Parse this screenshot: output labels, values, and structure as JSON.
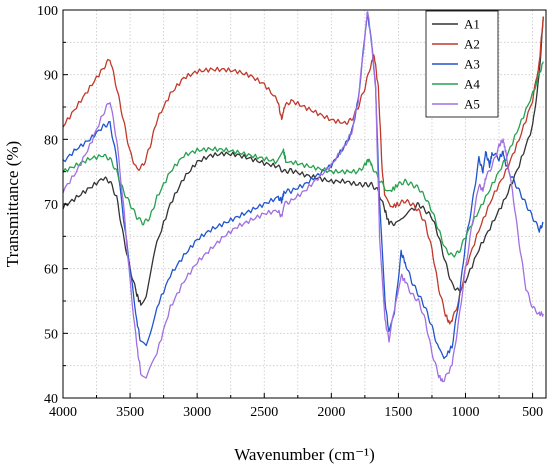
{
  "chart_data": {
    "type": "line",
    "title": "",
    "xlabel": "Wavenumber (cm⁻¹)",
    "ylabel": "Transmittance (%)",
    "xlim": [
      4000,
      400
    ],
    "ylim": [
      40,
      100
    ],
    "x_reversed": true,
    "grid": true,
    "legend": "top-right",
    "xticks": [
      4000,
      3500,
      3000,
      2500,
      2000,
      1500,
      1000,
      500
    ],
    "yticks": [
      40,
      50,
      60,
      70,
      80,
      90,
      100
    ],
    "series": [
      {
        "name": "A1",
        "color": "#333333",
        "points": [
          [
            4000,
            69.5
          ],
          [
            3900,
            71
          ],
          [
            3800,
            72.5
          ],
          [
            3700,
            74
          ],
          [
            3650,
            73.5
          ],
          [
            3600,
            71
          ],
          [
            3550,
            65
          ],
          [
            3500,
            60
          ],
          [
            3450,
            56
          ],
          [
            3420,
            54.5
          ],
          [
            3380,
            56
          ],
          [
            3300,
            64
          ],
          [
            3200,
            70
          ],
          [
            3100,
            74
          ],
          [
            3000,
            76.5
          ],
          [
            2900,
            77.5
          ],
          [
            2800,
            77.8
          ],
          [
            2700,
            77.6
          ],
          [
            2600,
            77
          ],
          [
            2500,
            76.3
          ],
          [
            2400,
            75.8
          ],
          [
            2350,
            75
          ],
          [
            2300,
            75.2
          ],
          [
            2200,
            74.5
          ],
          [
            2100,
            74
          ],
          [
            2000,
            73.5
          ],
          [
            1900,
            73.5
          ],
          [
            1800,
            73
          ],
          [
            1750,
            73
          ],
          [
            1700,
            73
          ],
          [
            1650,
            72
          ],
          [
            1600,
            69
          ],
          [
            1570,
            67
          ],
          [
            1520,
            67
          ],
          [
            1480,
            68
          ],
          [
            1400,
            69
          ],
          [
            1350,
            70
          ],
          [
            1300,
            69
          ],
          [
            1250,
            68
          ],
          [
            1200,
            65
          ],
          [
            1150,
            61
          ],
          [
            1100,
            57.5
          ],
          [
            1050,
            56.5
          ],
          [
            1000,
            58
          ],
          [
            900,
            63
          ],
          [
            800,
            67
          ],
          [
            700,
            71
          ],
          [
            600,
            76
          ],
          [
            500,
            82
          ],
          [
            450,
            90
          ],
          [
            420,
            99
          ]
        ]
      },
      {
        "name": "A2",
        "color": "#c0392b",
        "points": [
          [
            4000,
            82
          ],
          [
            3900,
            85
          ],
          [
            3800,
            88
          ],
          [
            3700,
            91
          ],
          [
            3650,
            92.5
          ],
          [
            3600,
            88
          ],
          [
            3550,
            83
          ],
          [
            3500,
            78
          ],
          [
            3450,
            75.3
          ],
          [
            3400,
            76
          ],
          [
            3350,
            79
          ],
          [
            3300,
            83
          ],
          [
            3200,
            87
          ],
          [
            3100,
            89.5
          ],
          [
            3000,
            90.5
          ],
          [
            2900,
            90.8
          ],
          [
            2800,
            90.8
          ],
          [
            2700,
            90.5
          ],
          [
            2600,
            89.8
          ],
          [
            2500,
            88.5
          ],
          [
            2400,
            86
          ],
          [
            2370,
            83
          ],
          [
            2350,
            85
          ],
          [
            2300,
            86
          ],
          [
            2200,
            85
          ],
          [
            2100,
            84
          ],
          [
            2000,
            83
          ],
          [
            1900,
            82.5
          ],
          [
            1850,
            83
          ],
          [
            1800,
            85
          ],
          [
            1750,
            88
          ],
          [
            1700,
            92
          ],
          [
            1680,
            93
          ],
          [
            1650,
            88
          ],
          [
            1620,
            75
          ],
          [
            1600,
            71
          ],
          [
            1560,
            69.5
          ],
          [
            1500,
            70
          ],
          [
            1450,
            70.5
          ],
          [
            1400,
            70
          ],
          [
            1350,
            69
          ],
          [
            1300,
            67
          ],
          [
            1250,
            63
          ],
          [
            1200,
            57
          ],
          [
            1150,
            53
          ],
          [
            1120,
            51.5
          ],
          [
            1100,
            52
          ],
          [
            1050,
            55
          ],
          [
            1000,
            60
          ],
          [
            900,
            66
          ],
          [
            800,
            71
          ],
          [
            700,
            75
          ],
          [
            600,
            80
          ],
          [
            500,
            86
          ],
          [
            450,
            92
          ],
          [
            420,
            99
          ]
        ]
      },
      {
        "name": "A3",
        "color": "#2255cc",
        "points": [
          [
            4000,
            76.5
          ],
          [
            3900,
            78.5
          ],
          [
            3800,
            80
          ],
          [
            3700,
            82
          ],
          [
            3650,
            82.5
          ],
          [
            3600,
            77
          ],
          [
            3550,
            68
          ],
          [
            3500,
            60
          ],
          [
            3450,
            52
          ],
          [
            3420,
            48.5
          ],
          [
            3380,
            48
          ],
          [
            3300,
            54
          ],
          [
            3200,
            59
          ],
          [
            3100,
            62
          ],
          [
            3000,
            64.5
          ],
          [
            2900,
            66
          ],
          [
            2800,
            67
          ],
          [
            2700,
            68
          ],
          [
            2600,
            69
          ],
          [
            2500,
            70
          ],
          [
            2400,
            71
          ],
          [
            2370,
            70.5
          ],
          [
            2350,
            72
          ],
          [
            2300,
            72
          ],
          [
            2200,
            73
          ],
          [
            2100,
            74.5
          ],
          [
            2000,
            76
          ],
          [
            1900,
            79
          ],
          [
            1850,
            81
          ],
          [
            1800,
            86
          ],
          [
            1750,
            96
          ],
          [
            1730,
            99.5
          ],
          [
            1700,
            95
          ],
          [
            1670,
            88
          ],
          [
            1640,
            70
          ],
          [
            1600,
            55
          ],
          [
            1570,
            50
          ],
          [
            1530,
            53
          ],
          [
            1480,
            62.5
          ],
          [
            1450,
            61
          ],
          [
            1400,
            58
          ],
          [
            1350,
            56
          ],
          [
            1300,
            54
          ],
          [
            1250,
            51
          ],
          [
            1200,
            47.5
          ],
          [
            1160,
            46
          ],
          [
            1100,
            48
          ],
          [
            1050,
            55
          ],
          [
            1000,
            64
          ],
          [
            950,
            70
          ],
          [
            900,
            77
          ],
          [
            870,
            75
          ],
          [
            850,
            78
          ],
          [
            820,
            76
          ],
          [
            800,
            78
          ],
          [
            750,
            77
          ],
          [
            720,
            78
          ],
          [
            700,
            76
          ],
          [
            650,
            74
          ],
          [
            600,
            72
          ],
          [
            550,
            70
          ],
          [
            500,
            68
          ],
          [
            450,
            66
          ],
          [
            420,
            67
          ]
        ]
      },
      {
        "name": "A4",
        "color": "#27a050",
        "points": [
          [
            4000,
            75
          ],
          [
            3900,
            76
          ],
          [
            3800,
            77
          ],
          [
            3700,
            77.5
          ],
          [
            3650,
            77
          ],
          [
            3600,
            75
          ],
          [
            3550,
            72
          ],
          [
            3500,
            70
          ],
          [
            3450,
            68
          ],
          [
            3400,
            67
          ],
          [
            3350,
            68
          ],
          [
            3300,
            71
          ],
          [
            3200,
            75
          ],
          [
            3100,
            77.5
          ],
          [
            3000,
            78.3
          ],
          [
            2900,
            78.5
          ],
          [
            2800,
            78.4
          ],
          [
            2700,
            78
          ],
          [
            2600,
            77.5
          ],
          [
            2500,
            77
          ],
          [
            2400,
            76.5
          ],
          [
            2360,
            78.5
          ],
          [
            2340,
            76.8
          ],
          [
            2300,
            76.5
          ],
          [
            2200,
            76
          ],
          [
            2100,
            75.5
          ],
          [
            2000,
            75
          ],
          [
            1900,
            75
          ],
          [
            1800,
            75
          ],
          [
            1750,
            76
          ],
          [
            1720,
            77
          ],
          [
            1700,
            76
          ],
          [
            1650,
            74
          ],
          [
            1600,
            72.5
          ],
          [
            1560,
            72
          ],
          [
            1500,
            73
          ],
          [
            1450,
            73.5
          ],
          [
            1400,
            73
          ],
          [
            1350,
            72.5
          ],
          [
            1300,
            71
          ],
          [
            1250,
            69
          ],
          [
            1200,
            66
          ],
          [
            1150,
            63
          ],
          [
            1100,
            62
          ],
          [
            1050,
            62.5
          ],
          [
            1000,
            65
          ],
          [
            900,
            69
          ],
          [
            800,
            73
          ],
          [
            700,
            77
          ],
          [
            600,
            82
          ],
          [
            500,
            87
          ],
          [
            450,
            90
          ],
          [
            420,
            92
          ]
        ]
      },
      {
        "name": "A5",
        "color": "#a070e0",
        "points": [
          [
            4000,
            72
          ],
          [
            3900,
            75
          ],
          [
            3800,
            79
          ],
          [
            3700,
            84
          ],
          [
            3650,
            86
          ],
          [
            3600,
            80
          ],
          [
            3550,
            70
          ],
          [
            3500,
            58
          ],
          [
            3450,
            48
          ],
          [
            3420,
            44
          ],
          [
            3380,
            43
          ],
          [
            3300,
            47
          ],
          [
            3200,
            54
          ],
          [
            3100,
            58
          ],
          [
            3000,
            61
          ],
          [
            2900,
            63
          ],
          [
            2800,
            65
          ],
          [
            2700,
            66.5
          ],
          [
            2600,
            67.5
          ],
          [
            2500,
            68.5
          ],
          [
            2400,
            69
          ],
          [
            2370,
            68
          ],
          [
            2350,
            70
          ],
          [
            2300,
            70.5
          ],
          [
            2200,
            72
          ],
          [
            2100,
            74
          ],
          [
            2000,
            76
          ],
          [
            1900,
            79
          ],
          [
            1850,
            81
          ],
          [
            1800,
            86
          ],
          [
            1750,
            96
          ],
          [
            1730,
            100
          ],
          [
            1700,
            95
          ],
          [
            1670,
            88
          ],
          [
            1640,
            65
          ],
          [
            1600,
            52
          ],
          [
            1570,
            49
          ],
          [
            1520,
            55
          ],
          [
            1480,
            59
          ],
          [
            1450,
            58
          ],
          [
            1400,
            56
          ],
          [
            1350,
            55
          ],
          [
            1300,
            52
          ],
          [
            1250,
            47
          ],
          [
            1200,
            43.5
          ],
          [
            1170,
            42.5
          ],
          [
            1100,
            45
          ],
          [
            1050,
            52
          ],
          [
            1000,
            60
          ],
          [
            950,
            67
          ],
          [
            900,
            73
          ],
          [
            870,
            72
          ],
          [
            850,
            74
          ],
          [
            800,
            76
          ],
          [
            750,
            79
          ],
          [
            720,
            80
          ],
          [
            700,
            78
          ],
          [
            650,
            72
          ],
          [
            600,
            64
          ],
          [
            550,
            57
          ],
          [
            500,
            54
          ],
          [
            450,
            53
          ],
          [
            420,
            53
          ]
        ]
      }
    ]
  }
}
